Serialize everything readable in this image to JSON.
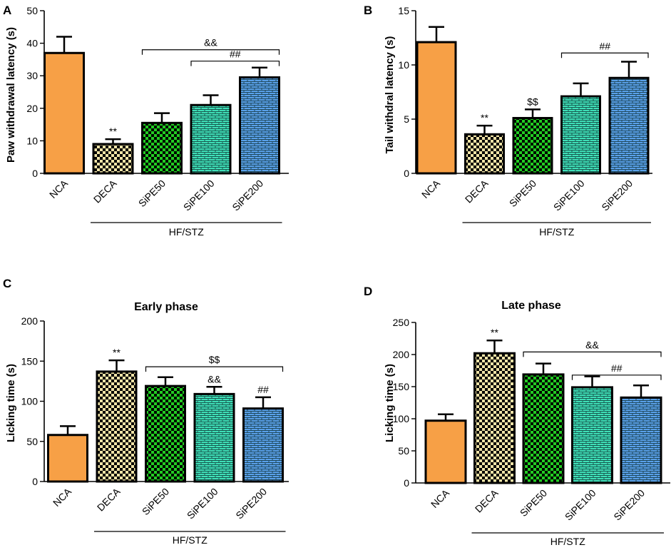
{
  "figure": {
    "group_label": "HF/STZ"
  },
  "chart_data": [
    {
      "panel": "A",
      "type": "bar",
      "title": "",
      "ylabel": "Paw withdrawal latency (s)",
      "xlabel": "",
      "ylim": [
        0,
        50
      ],
      "yticks": [
        0,
        10,
        20,
        30,
        40,
        50
      ],
      "categories": [
        "NCA",
        "DECA",
        "SiPE50",
        "SiPE100",
        "SiPE200"
      ],
      "values": [
        37,
        9,
        15.5,
        21,
        29.5
      ],
      "errors": [
        5,
        1.5,
        3,
        3,
        3
      ],
      "bar_colors": [
        "#f7a046",
        "#efe2a6",
        "#22cc22",
        "#3fe0b8",
        "#5aa1ea"
      ],
      "bar_patterns": [
        "solid",
        "checker",
        "checker",
        "brick",
        "brick"
      ],
      "bar_labels": [
        "",
        "**",
        "",
        "",
        ""
      ],
      "brackets": [
        {
          "from": 2,
          "to": 4,
          "label": "&&",
          "value": 38
        },
        {
          "from": 3,
          "to": 4,
          "label": "##",
          "value": 34.5
        }
      ],
      "group": {
        "from": 1,
        "to": 4,
        "label": "HF/STZ"
      }
    },
    {
      "panel": "B",
      "type": "bar",
      "title": "",
      "ylabel": "Tail withdral latency (s)",
      "xlabel": "",
      "ylim": [
        0,
        15
      ],
      "yticks": [
        0,
        5,
        10,
        15
      ],
      "categories": [
        "NCA",
        "DECA",
        "SiPE50",
        "SiPE100",
        "SiPE200"
      ],
      "values": [
        12.1,
        3.6,
        5.1,
        7.1,
        8.8
      ],
      "errors": [
        1.4,
        0.8,
        0.8,
        1.2,
        1.5
      ],
      "bar_colors": [
        "#f7a046",
        "#efe2a6",
        "#22cc22",
        "#3fe0b8",
        "#5aa1ea"
      ],
      "bar_patterns": [
        "solid",
        "checker",
        "checker",
        "brick",
        "brick"
      ],
      "bar_labels": [
        "",
        "**",
        "$$",
        "",
        ""
      ],
      "brackets": [
        {
          "from": 3,
          "to": 4,
          "label": "##",
          "value": 11.1
        }
      ],
      "group": {
        "from": 1,
        "to": 4,
        "label": "HF/STZ"
      }
    },
    {
      "panel": "C",
      "type": "bar",
      "title": "Early phase",
      "ylabel": "Licking time (s)",
      "xlabel": "",
      "ylim": [
        0,
        200
      ],
      "yticks": [
        0,
        50,
        100,
        150,
        200
      ],
      "categories": [
        "NCA",
        "DECA",
        "SiPE50",
        "SiPE100",
        "SiPE200"
      ],
      "values": [
        58,
        137,
        119,
        109,
        91
      ],
      "errors": [
        11,
        14,
        11,
        9,
        14
      ],
      "bar_colors": [
        "#f7a046",
        "#efe2a6",
        "#22cc22",
        "#3fe0b8",
        "#5aa1ea"
      ],
      "bar_patterns": [
        "solid",
        "checker",
        "checker",
        "brick",
        "brick"
      ],
      "bar_labels": [
        "",
        "**",
        "",
        "&&",
        "##"
      ],
      "brackets": [
        {
          "from": 2,
          "to": 4,
          "label": "$$",
          "value": 143
        }
      ],
      "group": {
        "from": 1,
        "to": 4,
        "label": "HF/STZ"
      }
    },
    {
      "panel": "D",
      "type": "bar",
      "title": "Late phase",
      "ylabel": "Licking time (s)",
      "xlabel": "",
      "ylim": [
        0,
        250
      ],
      "yticks": [
        0,
        50,
        100,
        150,
        200,
        250
      ],
      "categories": [
        "NCA",
        "DECA",
        "SiPE50",
        "SiPE100",
        "SiPE200"
      ],
      "values": [
        97,
        202,
        169,
        149,
        133
      ],
      "errors": [
        10,
        20,
        17,
        17,
        19
      ],
      "bar_colors": [
        "#f7a046",
        "#efe2a6",
        "#22cc22",
        "#3fe0b8",
        "#5aa1ea"
      ],
      "bar_patterns": [
        "solid",
        "checker",
        "checker",
        "brick",
        "brick"
      ],
      "bar_labels": [
        "",
        "**",
        "",
        "",
        ""
      ],
      "brackets": [
        {
          "from": 2,
          "to": 4,
          "label": "&&",
          "value": 204
        },
        {
          "from": 3,
          "to": 4,
          "label": "##",
          "value": 168
        }
      ],
      "group": {
        "from": 1,
        "to": 4,
        "label": "HF/STZ"
      }
    }
  ]
}
